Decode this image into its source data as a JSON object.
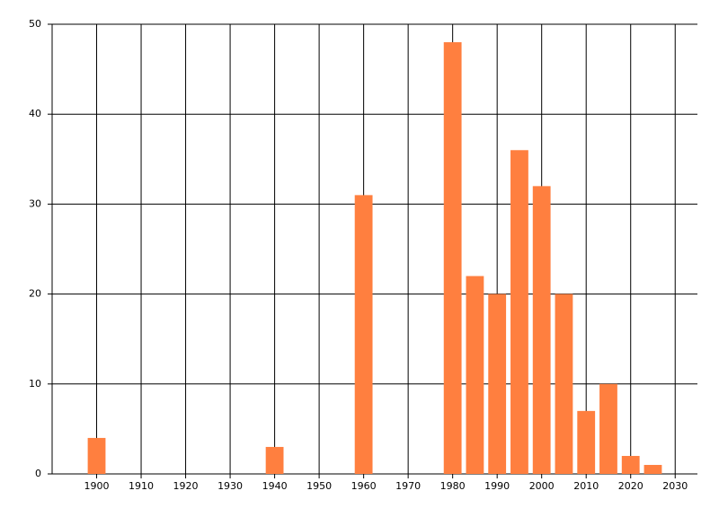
{
  "chart_data": {
    "type": "bar",
    "x": [
      1900,
      1940,
      1960,
      1980,
      1985,
      1990,
      1995,
      2000,
      2005,
      2010,
      2015,
      2020,
      2025
    ],
    "values": [
      4,
      3,
      31,
      48,
      22,
      20,
      36,
      32,
      20,
      7,
      10,
      2,
      1
    ],
    "color": "#ff7f3f",
    "xlim": [
      1890,
      2035
    ],
    "xticks": [
      1900,
      1910,
      1920,
      1930,
      1940,
      1950,
      1960,
      1970,
      1980,
      1990,
      2000,
      2010,
      2020,
      2030
    ],
    "ylim": [
      0,
      50
    ],
    "yticks": [
      0,
      10,
      20,
      30,
      40,
      50
    ],
    "grid": true
  }
}
